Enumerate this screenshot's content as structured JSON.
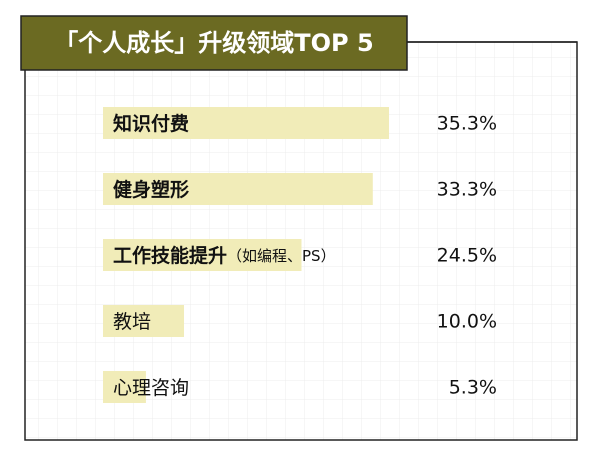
{
  "chart_data": {
    "type": "bar",
    "orientation": "horizontal",
    "title": "「个人成长」升级领域TOP 5",
    "categories": [
      "知识付费",
      "健身塑形",
      "工作技能提升",
      "教培",
      "心理咨询"
    ],
    "category_notes": {
      "2": "（如编程、PS）"
    },
    "values": [
      35.3,
      33.3,
      24.5,
      10.0,
      5.3
    ],
    "value_labels": [
      "35.3%",
      "33.3%",
      "24.5%",
      "10.0%",
      "5.3%"
    ],
    "color": "#f1ecb8",
    "title_color": "#6b6a22"
  }
}
